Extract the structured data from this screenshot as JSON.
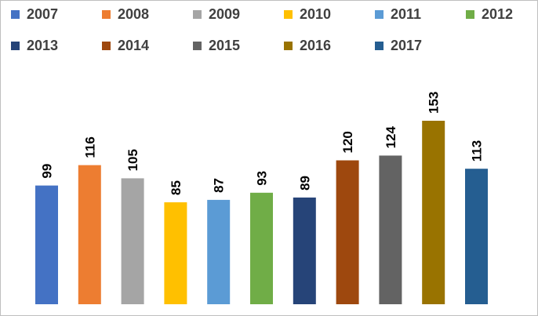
{
  "chart_data": {
    "type": "bar",
    "categories": [
      "2007",
      "2008",
      "2009",
      "2010",
      "2011",
      "2012",
      "2013",
      "2014",
      "2015",
      "2016",
      "2017"
    ],
    "values": [
      99,
      116,
      105,
      85,
      87,
      93,
      89,
      120,
      124,
      153,
      113
    ],
    "colors": [
      "#4472C4",
      "#ED7D31",
      "#A5A5A5",
      "#FFC000",
      "#5B9BD5",
      "#70AD47",
      "#264478",
      "#9E480E",
      "#636363",
      "#997300",
      "#255E91"
    ],
    "title": "",
    "xlabel": "",
    "ylabel": "",
    "ylim": [
      0,
      165
    ],
    "grid": false,
    "data_labels": true,
    "legend_position": "top"
  }
}
